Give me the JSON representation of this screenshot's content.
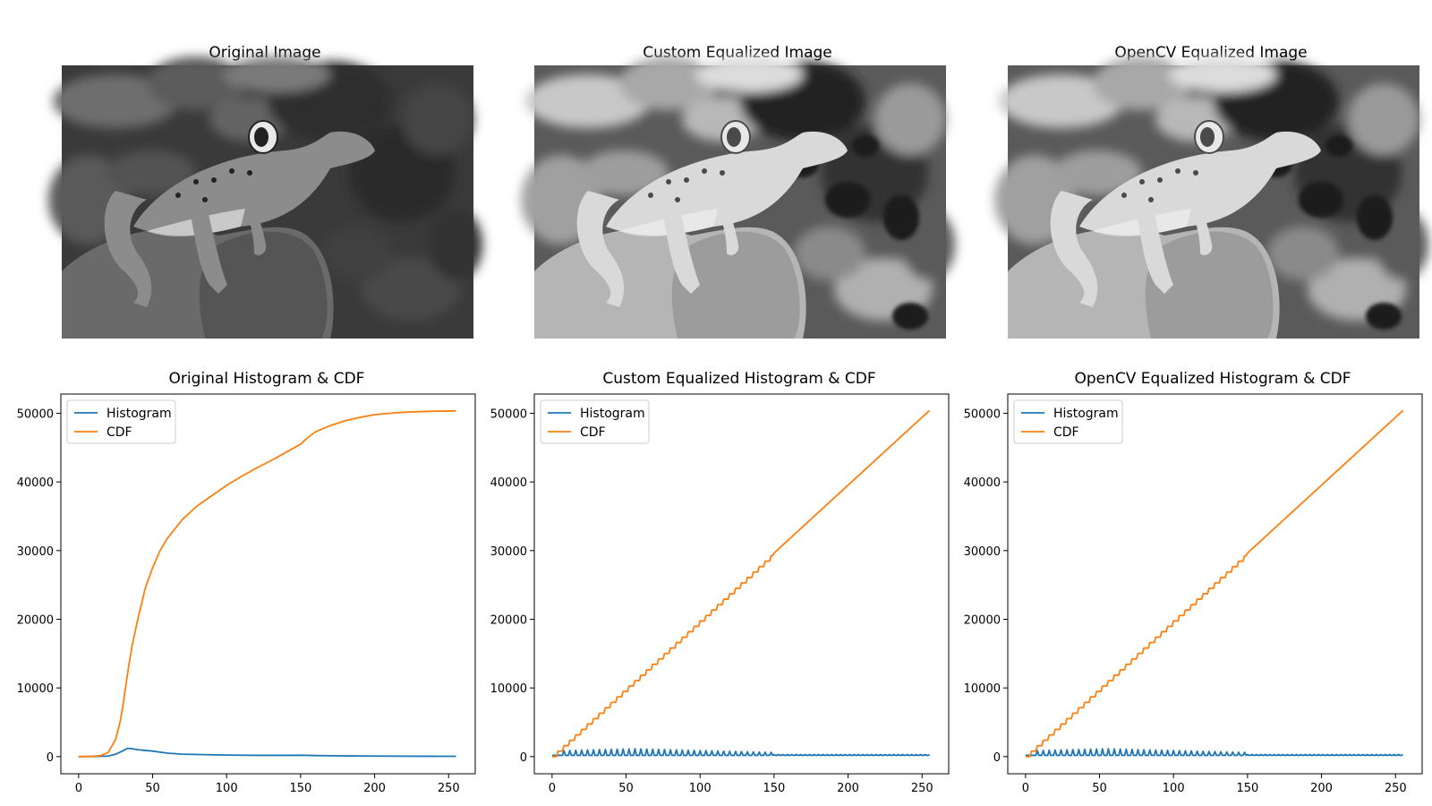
{
  "colors": {
    "histogram": "#1f77b4",
    "cdf": "#ff7f0e",
    "axes": "#000000"
  },
  "images": [
    {
      "title": "Original Image",
      "variant": "original"
    },
    {
      "title": "Custom Equalized Image",
      "variant": "equalized"
    },
    {
      "title": "OpenCV Equalized Image",
      "variant": "equalized"
    }
  ],
  "chart_data": [
    {
      "type": "line",
      "title": "Original Histogram & CDF",
      "xlim": [
        -12,
        268
      ],
      "ylim": [
        -2500,
        52800
      ],
      "xticks": [
        0,
        50,
        100,
        150,
        200,
        250
      ],
      "yticks": [
        0,
        10000,
        20000,
        30000,
        40000,
        50000
      ],
      "legend": {
        "position": "top-left",
        "entries": [
          "Histogram",
          "CDF"
        ]
      },
      "grid": false,
      "series": [
        {
          "name": "Histogram",
          "color": "#1f77b4",
          "points": [
            [
              0,
              0
            ],
            [
              10,
              10
            ],
            [
              20,
              80
            ],
            [
              25,
              350
            ],
            [
              30,
              850
            ],
            [
              33,
              1200
            ],
            [
              36,
              1150
            ],
            [
              40,
              1000
            ],
            [
              45,
              900
            ],
            [
              50,
              800
            ],
            [
              55,
              650
            ],
            [
              60,
              500
            ],
            [
              70,
              350
            ],
            [
              80,
              300
            ],
            [
              100,
              220
            ],
            [
              120,
              180
            ],
            [
              140,
              180
            ],
            [
              150,
              200
            ],
            [
              160,
              150
            ],
            [
              180,
              100
            ],
            [
              200,
              80
            ],
            [
              230,
              50
            ],
            [
              255,
              40
            ]
          ]
        },
        {
          "name": "CDF",
          "color": "#ff7f0e",
          "points": [
            [
              0,
              0
            ],
            [
              10,
              50
            ],
            [
              15,
              150
            ],
            [
              20,
              600
            ],
            [
              25,
              2500
            ],
            [
              28,
              5000
            ],
            [
              30,
              7500
            ],
            [
              33,
              12000
            ],
            [
              36,
              16000
            ],
            [
              40,
              20000
            ],
            [
              45,
              24500
            ],
            [
              50,
              27500
            ],
            [
              55,
              30000
            ],
            [
              60,
              31800
            ],
            [
              70,
              34500
            ],
            [
              80,
              36500
            ],
            [
              90,
              38000
            ],
            [
              100,
              39500
            ],
            [
              110,
              40800
            ],
            [
              120,
              42000
            ],
            [
              130,
              43100
            ],
            [
              140,
              44300
            ],
            [
              150,
              45500
            ],
            [
              155,
              46500
            ],
            [
              160,
              47300
            ],
            [
              170,
              48200
            ],
            [
              180,
              48900
            ],
            [
              190,
              49400
            ],
            [
              200,
              49800
            ],
            [
              210,
              50000
            ],
            [
              220,
              50150
            ],
            [
              240,
              50300
            ],
            [
              255,
              50350
            ]
          ]
        }
      ]
    },
    {
      "type": "line",
      "title": "Custom Equalized Histogram & CDF",
      "xlim": [
        -12,
        268
      ],
      "ylim": [
        -2500,
        52800
      ],
      "xticks": [
        0,
        50,
        100,
        150,
        200,
        250
      ],
      "yticks": [
        0,
        10000,
        20000,
        30000,
        40000,
        50000
      ],
      "legend": {
        "position": "top-left",
        "entries": [
          "Histogram",
          "CDF"
        ]
      },
      "grid": false,
      "series": [
        {
          "name": "Histogram",
          "color": "#1f77b4",
          "pattern": "equalized_spikes",
          "x_range": [
            0,
            255
          ],
          "baseline": 180,
          "peak": 1150
        },
        {
          "name": "CDF",
          "color": "#ff7f0e",
          "pattern": "staircase",
          "points": [
            [
              0,
              0
            ],
            [
              255,
              50400
            ]
          ]
        }
      ]
    },
    {
      "type": "line",
      "title": "OpenCV Equalized Histogram & CDF",
      "xlim": [
        -12,
        268
      ],
      "ylim": [
        -2500,
        52800
      ],
      "xticks": [
        0,
        50,
        100,
        150,
        200,
        250
      ],
      "yticks": [
        0,
        10000,
        20000,
        30000,
        40000,
        50000
      ],
      "legend": {
        "position": "top-left",
        "entries": [
          "Histogram",
          "CDF"
        ]
      },
      "grid": false,
      "series": [
        {
          "name": "Histogram",
          "color": "#1f77b4",
          "pattern": "equalized_spikes",
          "x_range": [
            0,
            255
          ],
          "baseline": 180,
          "peak": 1150
        },
        {
          "name": "CDF",
          "color": "#ff7f0e",
          "pattern": "staircase",
          "points": [
            [
              0,
              0
            ],
            [
              255,
              50400
            ]
          ]
        }
      ]
    }
  ]
}
